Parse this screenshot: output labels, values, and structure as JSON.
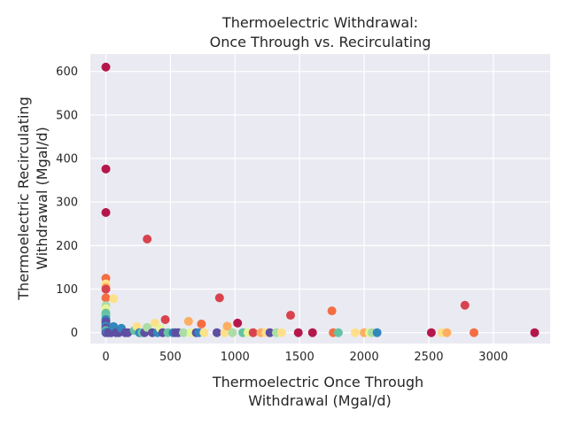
{
  "chart_data": {
    "type": "scatter",
    "title_lines": [
      "Thermoelectric Withdrawal:",
      "Once Through vs. Recirculating"
    ],
    "xlabel_lines": [
      "Thermoelectric Once Through",
      "Withdrawal (Mgal/d)"
    ],
    "ylabel_lines": [
      "Thermoelectric Recirculating",
      "Withdrawal (Mgal/d)"
    ],
    "xlim": [
      -120,
      3440
    ],
    "ylim": [
      -25,
      640
    ],
    "xticks": [
      0,
      500,
      1000,
      1500,
      2000,
      2500,
      3000
    ],
    "yticks": [
      0,
      100,
      200,
      300,
      400,
      500,
      600
    ],
    "grid": true,
    "colormap": "Spectral",
    "plot_background": "#eaeaf2",
    "points": [
      {
        "x": 0,
        "y": 610,
        "color": "#b5174b"
      },
      {
        "x": 0,
        "y": 376,
        "color": "#b5174b"
      },
      {
        "x": 0,
        "y": 276,
        "color": "#b5174b"
      },
      {
        "x": 320,
        "y": 215,
        "color": "#d8434e"
      },
      {
        "x": 0,
        "y": 125,
        "color": "#f46d43"
      },
      {
        "x": 0,
        "y": 112,
        "color": "#fee08b"
      },
      {
        "x": 0,
        "y": 104,
        "color": "#fdae61"
      },
      {
        "x": 0,
        "y": 100,
        "color": "#d8434e"
      },
      {
        "x": 0,
        "y": 80,
        "color": "#f46d43"
      },
      {
        "x": 60,
        "y": 78,
        "color": "#fee08b"
      },
      {
        "x": 0,
        "y": 62,
        "color": "#abdda4"
      },
      {
        "x": 0,
        "y": 55,
        "color": "#e6f598"
      },
      {
        "x": 0,
        "y": 45,
        "color": "#66c2a5"
      },
      {
        "x": 0,
        "y": 38,
        "color": "#66c2a5"
      },
      {
        "x": 0,
        "y": 30,
        "color": "#3288bd"
      },
      {
        "x": 0,
        "y": 25,
        "color": "#5e4fa2"
      },
      {
        "x": 0,
        "y": 20,
        "color": "#5e4fa2"
      },
      {
        "x": 0,
        "y": 15,
        "color": "#3288bd"
      },
      {
        "x": 0,
        "y": 10,
        "color": "#5e4fa2"
      },
      {
        "x": 0,
        "y": 5,
        "color": "#66c2a5"
      },
      {
        "x": 0,
        "y": 0,
        "color": "#5e4fa2"
      },
      {
        "x": 10,
        "y": 2,
        "color": "#3288bd"
      },
      {
        "x": 20,
        "y": 0,
        "color": "#5e4fa2"
      },
      {
        "x": 40,
        "y": 0,
        "color": "#5e4fa2"
      },
      {
        "x": 60,
        "y": 14,
        "color": "#3288bd"
      },
      {
        "x": 80,
        "y": 0,
        "color": "#5e4fa2"
      },
      {
        "x": 100,
        "y": 0,
        "color": "#5e4fa2"
      },
      {
        "x": 120,
        "y": 10,
        "color": "#3288bd"
      },
      {
        "x": 150,
        "y": 0,
        "color": "#5e4fa2"
      },
      {
        "x": 170,
        "y": 0,
        "color": "#5e4fa2"
      },
      {
        "x": 220,
        "y": 5,
        "color": "#66c2a5"
      },
      {
        "x": 240,
        "y": 14,
        "color": "#fee08b"
      },
      {
        "x": 260,
        "y": 0,
        "color": "#3288bd"
      },
      {
        "x": 280,
        "y": 0,
        "color": "#66c2a5"
      },
      {
        "x": 300,
        "y": 0,
        "color": "#5e4fa2"
      },
      {
        "x": 320,
        "y": 12,
        "color": "#abdda4"
      },
      {
        "x": 360,
        "y": 0,
        "color": "#5e4fa2"
      },
      {
        "x": 380,
        "y": 22,
        "color": "#fee08b"
      },
      {
        "x": 400,
        "y": 0,
        "color": "#3288bd"
      },
      {
        "x": 420,
        "y": 10,
        "color": "#e6f598"
      },
      {
        "x": 440,
        "y": 0,
        "color": "#5e4fa2"
      },
      {
        "x": 460,
        "y": 30,
        "color": "#d8434e"
      },
      {
        "x": 480,
        "y": 0,
        "color": "#66c2a5"
      },
      {
        "x": 520,
        "y": 0,
        "color": "#3288bd"
      },
      {
        "x": 540,
        "y": 0,
        "color": "#5e4fa2"
      },
      {
        "x": 560,
        "y": 0,
        "color": "#5e4fa2"
      },
      {
        "x": 600,
        "y": 0,
        "color": "#abdda4"
      },
      {
        "x": 640,
        "y": 26,
        "color": "#fdae61"
      },
      {
        "x": 660,
        "y": 0,
        "color": "#e6f598"
      },
      {
        "x": 700,
        "y": 0,
        "color": "#5e4fa2"
      },
      {
        "x": 720,
        "y": 0,
        "color": "#3288bd"
      },
      {
        "x": 740,
        "y": 20,
        "color": "#f46d43"
      },
      {
        "x": 760,
        "y": 0,
        "color": "#fee08b"
      },
      {
        "x": 860,
        "y": 0,
        "color": "#5e4fa2"
      },
      {
        "x": 880,
        "y": 80,
        "color": "#d8434e"
      },
      {
        "x": 920,
        "y": 0,
        "color": "#fee08b"
      },
      {
        "x": 940,
        "y": 15,
        "color": "#fdae61"
      },
      {
        "x": 980,
        "y": 0,
        "color": "#abdda4"
      },
      {
        "x": 1020,
        "y": 22,
        "color": "#b5174b"
      },
      {
        "x": 1060,
        "y": 0,
        "color": "#66c2a5"
      },
      {
        "x": 1100,
        "y": 0,
        "color": "#e6f598"
      },
      {
        "x": 1140,
        "y": 0,
        "color": "#d8434e"
      },
      {
        "x": 1200,
        "y": 0,
        "color": "#fdae61"
      },
      {
        "x": 1240,
        "y": 0,
        "color": "#fee08b"
      },
      {
        "x": 1270,
        "y": 0,
        "color": "#5e4fa2"
      },
      {
        "x": 1320,
        "y": 0,
        "color": "#abdda4"
      },
      {
        "x": 1360,
        "y": 0,
        "color": "#fee08b"
      },
      {
        "x": 1430,
        "y": 40,
        "color": "#d8434e"
      },
      {
        "x": 1490,
        "y": 0,
        "color": "#b5174b"
      },
      {
        "x": 1600,
        "y": 0,
        "color": "#b5174b"
      },
      {
        "x": 1750,
        "y": 50,
        "color": "#f46d43"
      },
      {
        "x": 1760,
        "y": 0,
        "color": "#f46d43"
      },
      {
        "x": 1800,
        "y": 0,
        "color": "#66c2a5"
      },
      {
        "x": 1930,
        "y": 0,
        "color": "#fee08b"
      },
      {
        "x": 2000,
        "y": 0,
        "color": "#fdae61"
      },
      {
        "x": 2040,
        "y": 0,
        "color": "#e6f598"
      },
      {
        "x": 2060,
        "y": 0,
        "color": "#abdda4"
      },
      {
        "x": 2100,
        "y": 0,
        "color": "#3288bd"
      },
      {
        "x": 2520,
        "y": 0,
        "color": "#b5174b"
      },
      {
        "x": 2600,
        "y": 0,
        "color": "#fee08b"
      },
      {
        "x": 2640,
        "y": 0,
        "color": "#fdae61"
      },
      {
        "x": 2780,
        "y": 63,
        "color": "#d8434e"
      },
      {
        "x": 2850,
        "y": 0,
        "color": "#f46d43"
      },
      {
        "x": 3320,
        "y": 0,
        "color": "#b5174b"
      }
    ]
  }
}
